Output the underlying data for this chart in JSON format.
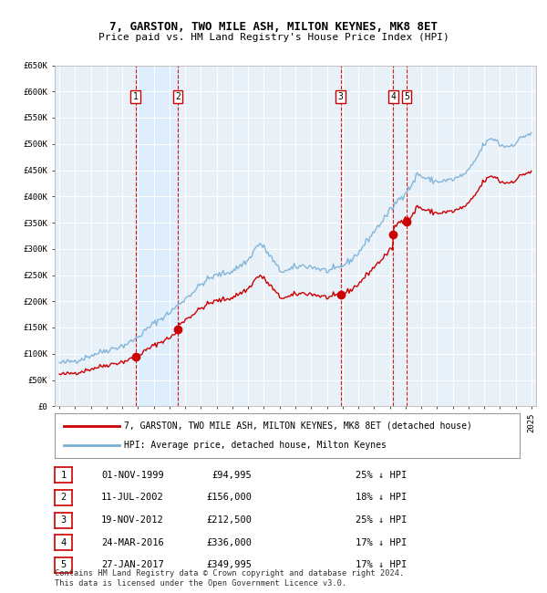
{
  "title": "7, GARSTON, TWO MILE ASH, MILTON KEYNES, MK8 8ET",
  "subtitle": "Price paid vs. HM Land Registry's House Price Index (HPI)",
  "sales": [
    {
      "num": 1,
      "date_label": "01-NOV-1999",
      "date_x": 1999.83,
      "price": 94995,
      "pct": "25% ↓ HPI"
    },
    {
      "num": 2,
      "date_label": "11-JUL-2002",
      "date_x": 2002.53,
      "price": 156000,
      "pct": "18% ↓ HPI"
    },
    {
      "num": 3,
      "date_label": "19-NOV-2012",
      "date_x": 2012.88,
      "price": 212500,
      "pct": "25% ↓ HPI"
    },
    {
      "num": 4,
      "date_label": "24-MAR-2016",
      "date_x": 2016.23,
      "price": 336000,
      "pct": "17% ↓ HPI"
    },
    {
      "num": 5,
      "date_label": "27-JAN-2017",
      "date_x": 2017.07,
      "price": 349995,
      "pct": "17% ↓ HPI"
    }
  ],
  "legend_line1": "7, GARSTON, TWO MILE ASH, MILTON KEYNES, MK8 8ET (detached house)",
  "legend_line2": "HPI: Average price, detached house, Milton Keynes",
  "footnote": "Contains HM Land Registry data © Crown copyright and database right 2024.\nThis data is licensed under the Open Government Licence v3.0.",
  "sale_color": "#cc0000",
  "hpi_color": "#7ab0d4",
  "shade_color": "#ddeeff",
  "ylim": [
    0,
    650000
  ],
  "xlim": [
    1994.7,
    2025.3
  ],
  "yticks": [
    0,
    50000,
    100000,
    150000,
    200000,
    250000,
    300000,
    350000,
    400000,
    450000,
    500000,
    550000,
    600000,
    650000
  ],
  "ytick_labels": [
    "£0",
    "£50K",
    "£100K",
    "£150K",
    "£200K",
    "£250K",
    "£300K",
    "£350K",
    "£400K",
    "£450K",
    "£500K",
    "£550K",
    "£600K",
    "£650K"
  ],
  "xticks": [
    1995,
    1996,
    1997,
    1998,
    1999,
    2000,
    2001,
    2002,
    2003,
    2004,
    2005,
    2006,
    2007,
    2008,
    2009,
    2010,
    2011,
    2012,
    2013,
    2014,
    2015,
    2016,
    2017,
    2018,
    2019,
    2020,
    2021,
    2022,
    2023,
    2024,
    2025
  ]
}
